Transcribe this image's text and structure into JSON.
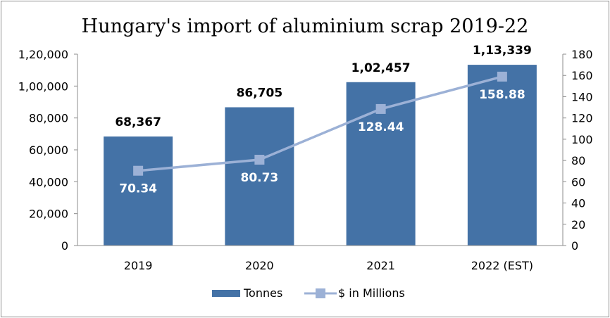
{
  "chart_data": {
    "type": "bar",
    "title": "Hungary's import of aluminium scrap 2019-22",
    "categories": [
      "2019",
      "2020",
      "2021",
      "2022 (EST)"
    ],
    "series": [
      {
        "name": "Tonnes",
        "type": "bar",
        "axis": "left",
        "values": [
          68367,
          86705,
          102457,
          113339
        ],
        "labels": [
          "68,367",
          "86,705",
          "1,02,457",
          "1,13,339"
        ],
        "color": "#4472a6"
      },
      {
        "name": "$ in Millions",
        "type": "line",
        "axis": "right",
        "values": [
          70.34,
          80.73,
          128.44,
          158.88
        ],
        "labels": [
          "70.34",
          "80.73",
          "128.44",
          "158.88"
        ],
        "color": "#9cb1d6"
      }
    ],
    "y_left": {
      "min": 0,
      "max": 120000,
      "ticks": [
        0,
        20000,
        40000,
        60000,
        80000,
        100000,
        120000
      ],
      "tick_labels": [
        "0",
        "20,000",
        "40,000",
        "60,000",
        "80,000",
        "1,00,000",
        "1,20,000"
      ]
    },
    "y_right": {
      "min": 0,
      "max": 180,
      "ticks": [
        0,
        20,
        40,
        60,
        80,
        100,
        120,
        140,
        160,
        180
      ],
      "tick_labels": [
        "0",
        "20",
        "40",
        "60",
        "80",
        "100",
        "120",
        "140",
        "160",
        "180"
      ]
    },
    "grid": false,
    "legend_position": "bottom"
  }
}
